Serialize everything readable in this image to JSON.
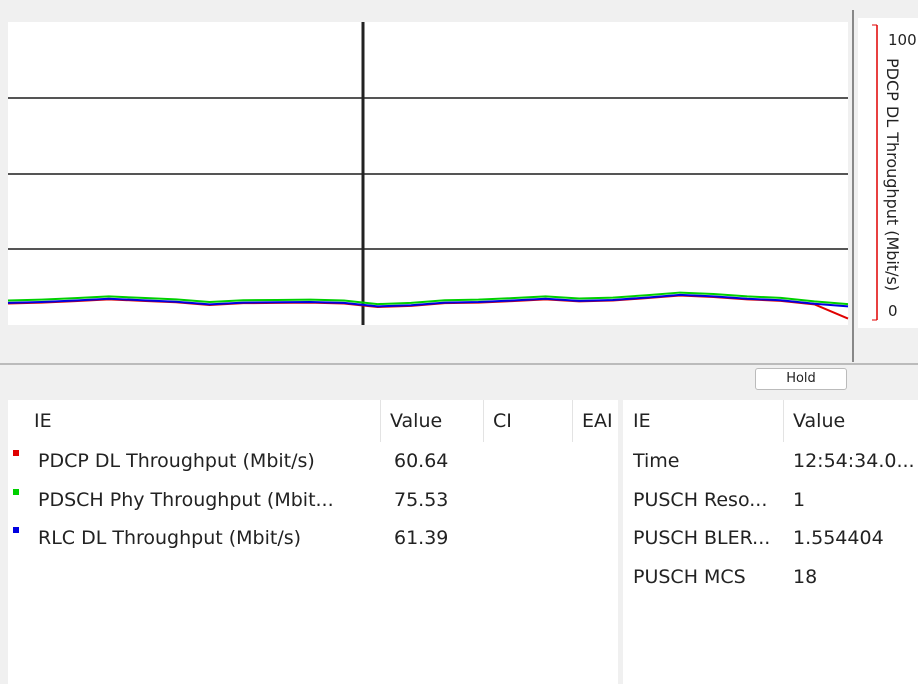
{
  "chart_data": {
    "type": "line",
    "ylabel": "PDCP DL Throughput (Mbit/s)",
    "ylim": [
      0,
      100
    ],
    "yticks": [
      0,
      100
    ],
    "series": [
      {
        "color": "#e00000",
        "values": [
          5.6,
          5.9,
          6.4,
          7.0,
          6.5,
          6.0,
          5.1,
          5.7,
          5.8,
          5.9,
          5.6,
          4.4,
          4.8,
          5.7,
          5.9,
          6.4,
          7.0,
          6.3,
          6.6,
          7.4,
          8.3,
          7.8,
          7.0,
          6.5,
          5.3,
          0.5
        ]
      },
      {
        "color": "#00d000",
        "values": [
          6.6,
          6.9,
          7.4,
          8.0,
          7.5,
          7.0,
          6.1,
          6.7,
          6.8,
          6.9,
          6.6,
          5.4,
          5.8,
          6.7,
          6.9,
          7.4,
          8.0,
          7.3,
          7.6,
          8.4,
          9.3,
          8.8,
          8.0,
          7.5,
          6.3,
          5.4
        ]
      },
      {
        "color": "#0000e0",
        "values": [
          5.8,
          6.1,
          6.6,
          7.2,
          6.7,
          6.2,
          5.3,
          5.9,
          6.0,
          6.1,
          5.8,
          4.6,
          5.0,
          5.9,
          6.1,
          6.6,
          7.2,
          6.5,
          6.8,
          7.6,
          8.5,
          8.0,
          7.2,
          6.7,
          5.5,
          4.6
        ]
      }
    ]
  },
  "hold_button": "Hold",
  "left_table": {
    "headers": [
      "IE",
      "Value",
      "CI",
      "EAI"
    ],
    "colors": [
      "#e00000",
      "#00d000",
      "#0000e0"
    ],
    "rows": [
      [
        "PDCP DL Throughput (Mbit/s)",
        "60.64"
      ],
      [
        "PDSCH Phy Throughput (Mbit...",
        "75.53"
      ],
      [
        "RLC DL Throughput (Mbit/s)",
        "61.39"
      ]
    ]
  },
  "right_table": {
    "headers": [
      "IE",
      "Value"
    ],
    "rows": [
      [
        "Time",
        "12:54:34.0..."
      ],
      [
        "PUSCH Reso...",
        "1"
      ],
      [
        "PUSCH BLER...",
        "1.554404"
      ],
      [
        "PUSCH MCS",
        "18"
      ]
    ]
  }
}
